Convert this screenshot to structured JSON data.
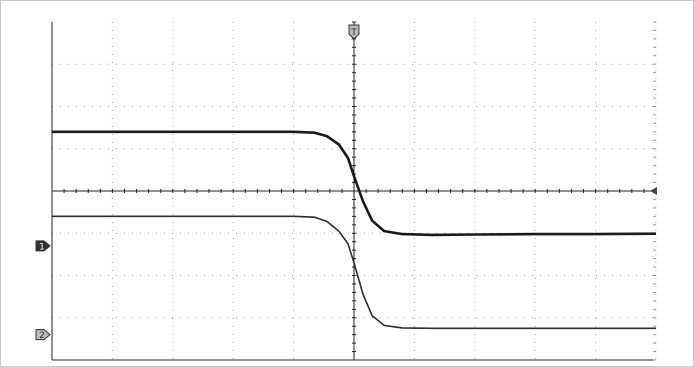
{
  "chart_data": {
    "type": "line",
    "title": "",
    "xlabel": "",
    "ylabel": "",
    "grid": true,
    "x_divisions": 10,
    "y_divisions": 8,
    "xlim": [
      0,
      10
    ],
    "ylim": [
      0,
      8
    ],
    "trigger_marker": {
      "label": "T",
      "x_div": 5.0
    },
    "channel_markers": [
      {
        "name": "1",
        "label": "1",
        "ground_div": 2.7
      },
      {
        "name": "2",
        "label": "2",
        "ground_div": 0.6
      }
    ],
    "right_marker": {
      "y_div": 4.0
    },
    "series": [
      {
        "name": "1",
        "color": "#1a1a1a",
        "x": [
          0,
          4.0,
          4.35,
          4.55,
          4.75,
          4.9,
          5.0,
          5.15,
          5.3,
          5.5,
          5.8,
          6.3,
          7.0,
          8.0,
          9.0,
          10.0
        ],
        "y": [
          5.4,
          5.4,
          5.38,
          5.3,
          5.1,
          4.78,
          4.35,
          3.75,
          3.3,
          3.05,
          2.98,
          2.96,
          2.97,
          2.98,
          2.98,
          2.99
        ]
      },
      {
        "name": "2",
        "color": "#2e2e2e",
        "x": [
          0,
          4.0,
          4.35,
          4.55,
          4.75,
          4.9,
          5.0,
          5.15,
          5.3,
          5.5,
          5.8,
          6.3,
          7.0,
          8.0,
          9.0,
          10.0
        ],
        "y": [
          3.4,
          3.4,
          3.38,
          3.28,
          3.05,
          2.75,
          2.3,
          1.55,
          1.05,
          0.82,
          0.76,
          0.75,
          0.75,
          0.75,
          0.75,
          0.75
        ]
      }
    ]
  },
  "colors": {
    "grid": "#9a9a9a",
    "axis": "#222222",
    "marker_fill": "#bbbbbb",
    "marker_stroke": "#333333"
  }
}
